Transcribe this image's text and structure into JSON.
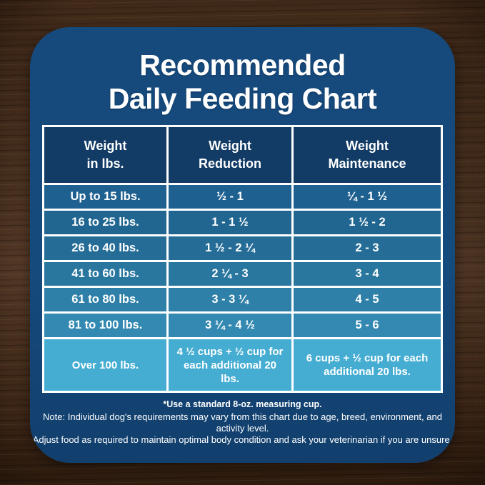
{
  "title": {
    "line1": "Recommended",
    "line2": "Daily Feeding Chart"
  },
  "table": {
    "headers": [
      {
        "line1": "Weight",
        "line2": "in lbs."
      },
      {
        "line1": "Weight",
        "line2": "Reduction"
      },
      {
        "line1": "Weight",
        "line2": "Maintenance"
      }
    ],
    "rows": [
      [
        "Up to 15 lbs.",
        "½ - 1",
        "¼ - 1 ½"
      ],
      [
        "16 to 25 lbs.",
        "1 - 1 ½",
        "1 ½ - 2"
      ],
      [
        "26 to 40 lbs.",
        "1 ½ - 2 ¼",
        "2 - 3"
      ],
      [
        "41 to 60 lbs.",
        "2 ¼ - 3",
        "3 - 4"
      ],
      [
        "61 to 80 lbs.",
        "3 - 3 ¼",
        "4 - 5"
      ],
      [
        "81 to 100 lbs.",
        "3 ¼ - 4 ½",
        "5 - 6"
      ],
      [
        "Over 100 lbs.",
        "4 ½ cups  + ½ cup for each additional 20 lbs.",
        "6 cups  + ½ cup for each additional 20 lbs."
      ]
    ],
    "row_colors": [
      "#1E608F",
      "#216691",
      "#256D97",
      "#29769F",
      "#2E80A8",
      "#3389B1",
      "#45ADD2"
    ],
    "header_bg": "#123C66"
  },
  "footnote": "*Use a standard 8-oz. measuring cup.",
  "note_line1": "Note: Individual dog's requirements may vary from this chart due to age, breed, environment, and activity level.",
  "note_line2": "Adjust food as required to maintain optimal body condition and ask your veterinarian if you are unsure.",
  "colors": {
    "card_bg": "#15497C",
    "card_bg_bottom": "#123F6D",
    "table_grid": "#FFFFFF",
    "text": "#FFFFFF",
    "wood_mid": "#6B4A33",
    "wood_dark": "#2E1C0E"
  },
  "chart_data": {
    "type": "table",
    "title": "Recommended Daily Feeding Chart",
    "columns": [
      "Weight in lbs.",
      "Weight Reduction",
      "Weight Maintenance"
    ],
    "rows": [
      [
        "Up to 15 lbs.",
        "½ - 1",
        "¼ - 1 ½"
      ],
      [
        "16 to 25 lbs.",
        "1 - 1 ½",
        "1 ½ - 2"
      ],
      [
        "26 to 40 lbs.",
        "1 ½ - 2 ¼",
        "2 - 3"
      ],
      [
        "41 to 60 lbs.",
        "2 ¼ - 3",
        "3 - 4"
      ],
      [
        "61 to 80 lbs.",
        "3 - 3 ¼",
        "4 - 5"
      ],
      [
        "81 to 100 lbs.",
        "3 ¼ - 4 ½",
        "5 - 6"
      ],
      [
        "Over 100 lbs.",
        "4 ½ cups + ½ cup for each additional 20 lbs.",
        "6 cups + ½ cup for each additional 20 lbs."
      ]
    ],
    "footnote": "*Use a standard 8-oz. measuring cup.",
    "note": "Note: Individual dog's requirements may vary from this chart due to age, breed, environment, and activity level. Adjust food as required to maintain optimal body condition and ask your veterinarian if you are unsure.",
    "units": "cups per day (standard 8-oz. measuring cup)"
  }
}
